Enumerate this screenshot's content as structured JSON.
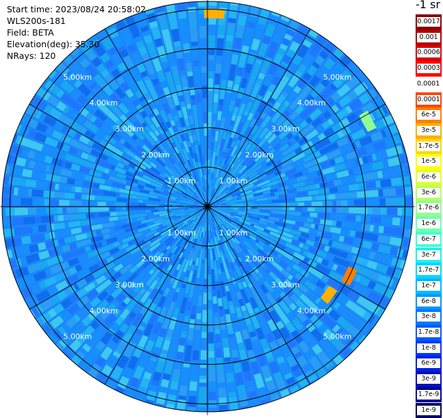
{
  "info": {
    "start_time": "Start time: 2023/08/24 20:58:02",
    "instrument": "WLS200s-181",
    "field": "Field: BETA",
    "elevation": "Elevation(deg): 35.30",
    "nrays": "NRays: 120"
  },
  "colorbar": {
    "unit": "-1 sr",
    "labels": [
      "0.0017",
      "0.001",
      "0.0006",
      "0.0003",
      "0.00017",
      "0.0001",
      "6e-5",
      "3e-5",
      "1.7e-5",
      "1e-5",
      "6e-6",
      "3e-6",
      "1.7e-6",
      "1e-6",
      "6e-7",
      "3e-7",
      "1.7e-7",
      "1e-7",
      "6e-8",
      "3e-8",
      "1.7e-8",
      "1e-8",
      "6e-9",
      "3e-9",
      "1.7e-9",
      "1e-9"
    ],
    "colors": [
      "#8b0000",
      "#b30000",
      "#d90000",
      "#ff0000",
      "#ffffff",
      "#ff4500",
      "#ff7f00",
      "#ffb000",
      "#ffd700",
      "#ffff00",
      "#e0ff30",
      "#b8ff60",
      "#90ff90",
      "#70ffb0",
      "#40ffd0",
      "#20f0f0",
      "#00d8ff",
      "#00b8ff",
      "#0098ff",
      "#0078ff",
      "#0058ff",
      "#0038ff",
      "#0020e0",
      "#0010c0",
      "#000090",
      "#000060"
    ]
  },
  "chart_data": {
    "type": "heatmap",
    "projection": "polar (PPI scan)",
    "rays": 120,
    "range_rings_km": [
      1,
      2,
      3,
      4,
      5
    ],
    "range_labels": [
      "1.00km",
      "2.00km",
      "3.00km",
      "4.00km",
      "5.00km"
    ],
    "max_range_km": 5.2,
    "background_level": "1e-8",
    "color_scale": "log",
    "value_range": [
      1e-09,
      0.0017
    ],
    "features": [
      {
        "azimuth_deg": 2,
        "range_km": 4.9,
        "value": "3e-5"
      },
      {
        "azimuth_deg": 62,
        "range_km": 4.6,
        "value": "1e-6"
      },
      {
        "azimuth_deg": 116,
        "range_km": 4.0,
        "value": "6e-5"
      },
      {
        "azimuth_deg": 126,
        "range_km": 3.8,
        "value": "3e-5"
      }
    ]
  }
}
